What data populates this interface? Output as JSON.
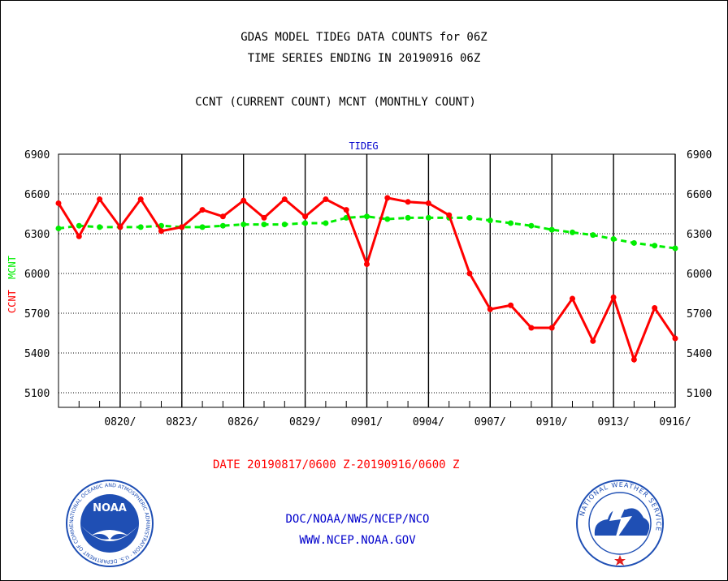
{
  "header": {
    "title_line1": "GDAS MODEL TIDEG DATA COUNTS for 06Z",
    "title_line2": "TIME SERIES ENDING IN 20190916 06Z",
    "subtitle": "CCNT (CURRENT COUNT) MCNT (MONTHLY COUNT)"
  },
  "footer": {
    "date_range": "DATE 20190817/0600 Z-20190916/0600 Z",
    "org_path": "DOC/NOAA/NWS/NCEP/NCO",
    "website": "WWW.NCEP.NOAA.GOV"
  },
  "logos": {
    "noaa": {
      "label": "NOAA",
      "ring_text": "NATIONAL OCEANIC AND ATMOSPHERIC ADMINISTRATION · U.S. DEPARTMENT OF COMMERCE",
      "colors": {
        "ring": "#1f4fb4",
        "center": "#2a6ad8",
        "bird": "#ffffff"
      }
    },
    "nws": {
      "ring_text": "NATIONAL WEATHER SERVICE",
      "colors": {
        "ring": "#1f4fb4",
        "cloud": "#1f4fb4",
        "bolt": "#ffffff",
        "star": "#e02020"
      }
    }
  },
  "chart_data": {
    "type": "line",
    "title": "TIDEG",
    "ylabel_ccnt": "CCNT",
    "ylabel_mcnt": "MCNT",
    "ylim": [
      4990,
      6900
    ],
    "yticks": [
      5100,
      5400,
      5700,
      6000,
      6300,
      6600,
      6900
    ],
    "x_tick_labels": [
      "0820/",
      "0823/",
      "0826/",
      "0829/",
      "0901/",
      "0904/",
      "0907/",
      "0910/",
      "0913/",
      "0916/"
    ],
    "x_start_date": "20190817",
    "x_tick_days_index": [
      3,
      6,
      9,
      12,
      15,
      18,
      21,
      24,
      27,
      30
    ],
    "grid": true,
    "colors": {
      "ccnt": "#ff0000",
      "mcnt": "#00ee00",
      "title": "#0000cc",
      "date": "#ff0000",
      "footer": "#0000cc"
    },
    "series": [
      {
        "name": "CCNT",
        "values": [
          6530,
          6280,
          6560,
          6350,
          6560,
          6320,
          6350,
          6480,
          6430,
          6550,
          6420,
          6560,
          6430,
          6560,
          6480,
          6070,
          6570,
          6540,
          6530,
          6440,
          6000,
          5730,
          5760,
          5590,
          5590,
          5810,
          5490,
          5820,
          5350,
          5740,
          5510
        ]
      },
      {
        "name": "MCNT",
        "values": [
          6340,
          6360,
          6350,
          6350,
          6350,
          6360,
          6350,
          6350,
          6360,
          6370,
          6370,
          6370,
          6380,
          6380,
          6420,
          6430,
          6410,
          6420,
          6420,
          6420,
          6420,
          6400,
          6380,
          6360,
          6330,
          6310,
          6290,
          6260,
          6230,
          6210,
          6190
        ]
      }
    ]
  }
}
